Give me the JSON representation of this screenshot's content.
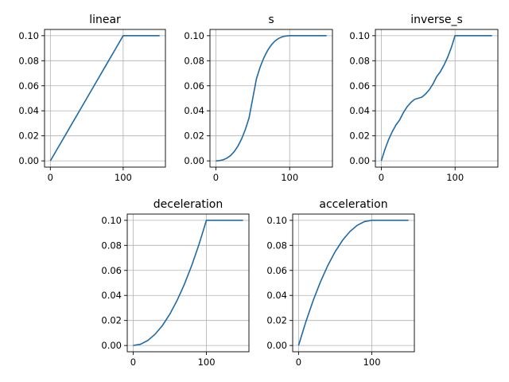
{
  "chart_data": [
    {
      "type": "line",
      "title": "linear",
      "xlim": [
        -8,
        158
      ],
      "ylim": [
        -0.005,
        0.105
      ],
      "xticks": [
        0,
        100
      ],
      "yticks": [
        0.0,
        0.02,
        0.04,
        0.06,
        0.08,
        0.1
      ],
      "xtick_labels": [
        "0",
        "100"
      ],
      "ytick_labels": [
        "0.00",
        "0.02",
        "0.04",
        "0.06",
        "0.08",
        "0.10"
      ],
      "grid": true,
      "line_color": "#1f6aa5",
      "x": [
        0,
        10,
        20,
        30,
        40,
        50,
        60,
        70,
        80,
        90,
        100,
        110,
        120,
        130,
        140,
        150
      ],
      "y": [
        0,
        0.01,
        0.02,
        0.03,
        0.04,
        0.05,
        0.06,
        0.07,
        0.08,
        0.09,
        0.1,
        0.1,
        0.1,
        0.1,
        0.1,
        0.1
      ]
    },
    {
      "type": "line",
      "title": "s",
      "xlim": [
        -8,
        158
      ],
      "ylim": [
        -0.005,
        0.105
      ],
      "xticks": [
        0,
        100
      ],
      "yticks": [
        0.0,
        0.02,
        0.04,
        0.06,
        0.08,
        0.1
      ],
      "xtick_labels": [
        "0",
        "100"
      ],
      "ytick_labels": [
        "0.00",
        "0.02",
        "0.04",
        "0.06",
        "0.08",
        "0.10"
      ],
      "grid": true,
      "line_color": "#1f6aa5",
      "x": [
        0,
        5,
        10,
        15,
        20,
        25,
        30,
        35,
        40,
        45,
        50,
        55,
        60,
        65,
        70,
        75,
        80,
        85,
        90,
        95,
        100,
        110,
        120,
        130,
        140,
        150
      ],
      "y": [
        0,
        0.0002,
        0.0009,
        0.0022,
        0.0043,
        0.0075,
        0.0119,
        0.0177,
        0.0251,
        0.0344,
        0.05,
        0.0656,
        0.0749,
        0.0823,
        0.0881,
        0.0925,
        0.0957,
        0.0978,
        0.0991,
        0.0998,
        0.1,
        0.1,
        0.1,
        0.1,
        0.1,
        0.1
      ]
    },
    {
      "type": "line",
      "title": "inverse_s",
      "xlim": [
        -8,
        158
      ],
      "ylim": [
        -0.005,
        0.105
      ],
      "xticks": [
        0,
        100
      ],
      "yticks": [
        0.0,
        0.02,
        0.04,
        0.06,
        0.08,
        0.1
      ],
      "xtick_labels": [
        "0",
        "100"
      ],
      "ytick_labels": [
        "0.00",
        "0.02",
        "0.04",
        "0.06",
        "0.08",
        "0.10"
      ],
      "grid": true,
      "line_color": "#1f6aa5",
      "x": [
        0,
        5,
        10,
        15,
        20,
        25,
        30,
        35,
        40,
        45,
        50,
        55,
        60,
        65,
        70,
        75,
        80,
        85,
        90,
        95,
        100,
        110,
        120,
        130,
        140,
        150
      ],
      "y": [
        0,
        0.0093,
        0.0171,
        0.0235,
        0.0288,
        0.0328,
        0.0386,
        0.0432,
        0.0466,
        0.0491,
        0.05,
        0.0509,
        0.0534,
        0.0568,
        0.0614,
        0.0672,
        0.0712,
        0.0765,
        0.0829,
        0.0907,
        0.1,
        0.1,
        0.1,
        0.1,
        0.1,
        0.1
      ]
    },
    {
      "type": "line",
      "title": "deceleration",
      "xlim": [
        -8,
        158
      ],
      "ylim": [
        -0.005,
        0.105
      ],
      "xticks": [
        0,
        100
      ],
      "yticks": [
        0.0,
        0.02,
        0.04,
        0.06,
        0.08,
        0.1
      ],
      "xtick_labels": [
        "0",
        "100"
      ],
      "ytick_labels": [
        "0.00",
        "0.02",
        "0.04",
        "0.06",
        "0.08",
        "0.10"
      ],
      "grid": true,
      "line_color": "#1f6aa5",
      "x": [
        0,
        10,
        20,
        30,
        40,
        50,
        60,
        70,
        80,
        90,
        100,
        110,
        120,
        130,
        140,
        150
      ],
      "y": [
        0,
        0.001,
        0.004,
        0.009,
        0.016,
        0.025,
        0.036,
        0.049,
        0.064,
        0.081,
        0.1,
        0.1,
        0.1,
        0.1,
        0.1,
        0.1
      ]
    },
    {
      "type": "line",
      "title": "acceleration",
      "xlim": [
        -8,
        158
      ],
      "ylim": [
        -0.005,
        0.105
      ],
      "xticks": [
        0,
        100
      ],
      "yticks": [
        0.0,
        0.02,
        0.04,
        0.06,
        0.08,
        0.1
      ],
      "xtick_labels": [
        "0",
        "100"
      ],
      "ytick_labels": [
        "0.00",
        "0.02",
        "0.04",
        "0.06",
        "0.08",
        "0.10"
      ],
      "grid": true,
      "line_color": "#1f6aa5",
      "x": [
        0,
        10,
        20,
        30,
        40,
        50,
        60,
        70,
        80,
        90,
        100,
        110,
        120,
        130,
        140,
        150
      ],
      "y": [
        0,
        0.019,
        0.036,
        0.051,
        0.064,
        0.075,
        0.084,
        0.091,
        0.096,
        0.099,
        0.1,
        0.1,
        0.1,
        0.1,
        0.1,
        0.1
      ]
    }
  ]
}
